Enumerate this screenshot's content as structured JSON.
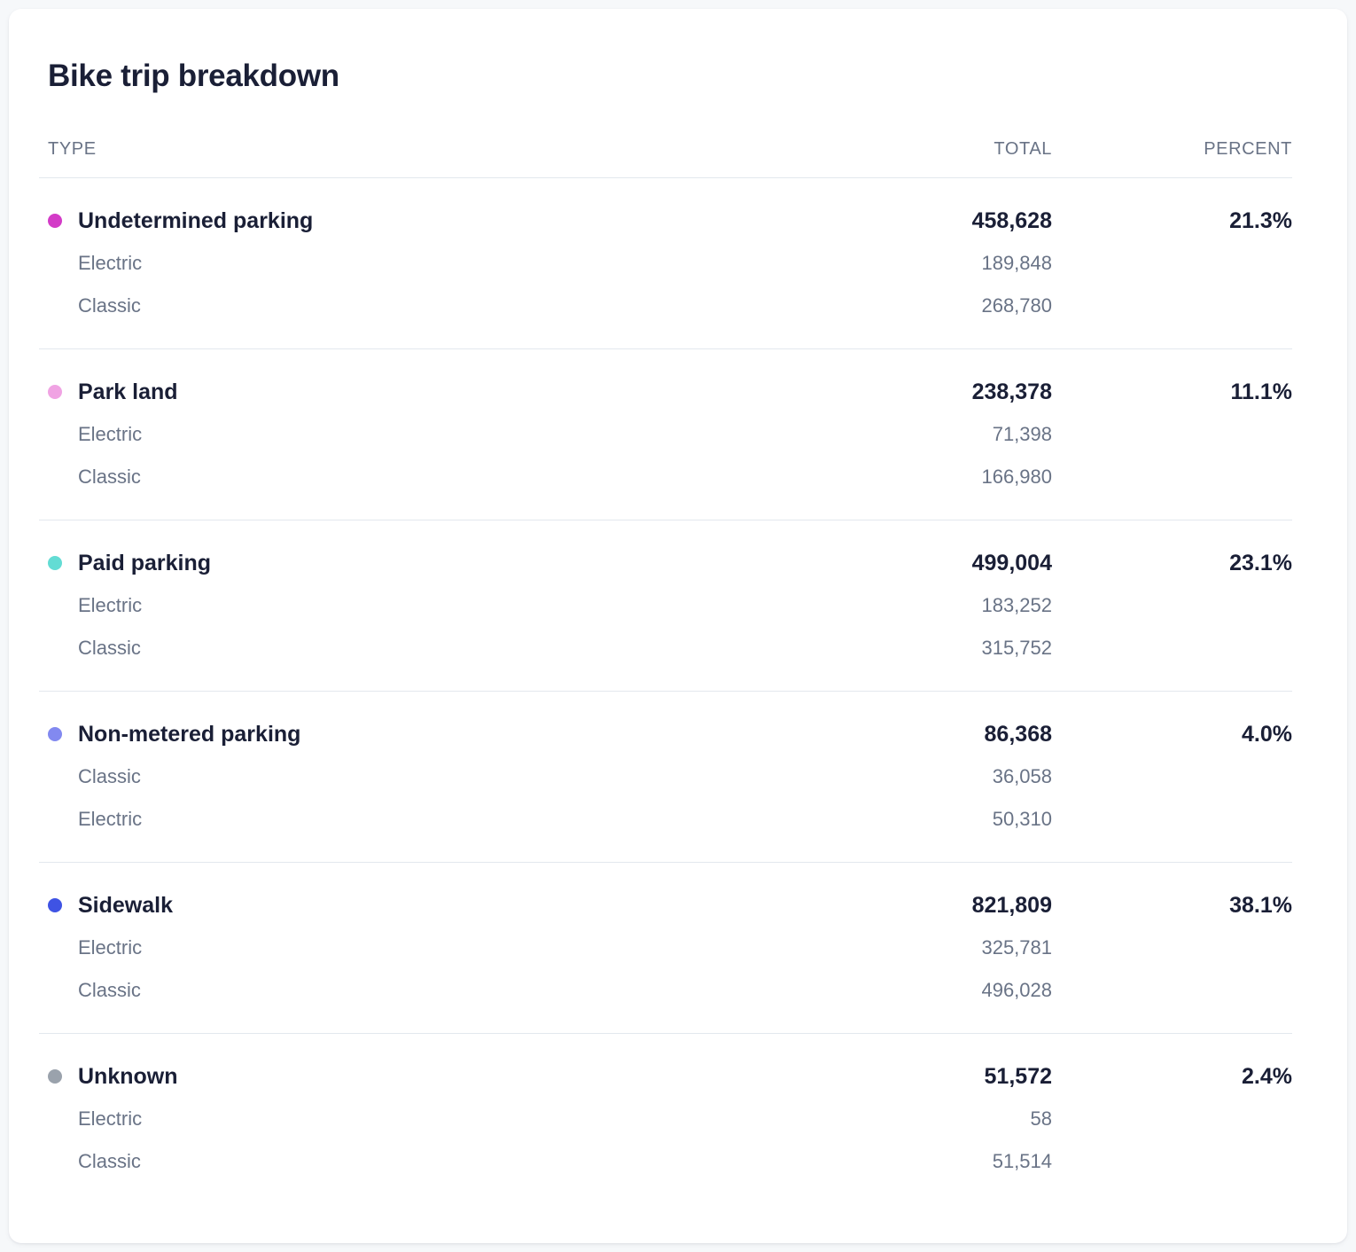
{
  "chart_data": {
    "type": "table",
    "title": "Bike trip breakdown",
    "columns": [
      "TYPE",
      "TOTAL",
      "PERCENT"
    ],
    "rows": [
      {
        "type": "Undetermined parking",
        "color": "#d33bc7",
        "total": 458628,
        "total_display": "458,628",
        "percent": "21.3%",
        "subrows": [
          {
            "label": "Electric",
            "value": 189848,
            "value_display": "189,848"
          },
          {
            "label": "Classic",
            "value": 268780,
            "value_display": "268,780"
          }
        ]
      },
      {
        "type": "Park land",
        "color": "#f0a3e3",
        "total": 238378,
        "total_display": "238,378",
        "percent": "11.1%",
        "subrows": [
          {
            "label": "Electric",
            "value": 71398,
            "value_display": "71,398"
          },
          {
            "label": "Classic",
            "value": 166980,
            "value_display": "166,980"
          }
        ]
      },
      {
        "type": "Paid parking",
        "color": "#63dcd4",
        "total": 499004,
        "total_display": "499,004",
        "percent": "23.1%",
        "subrows": [
          {
            "label": "Electric",
            "value": 183252,
            "value_display": "183,252"
          },
          {
            "label": "Classic",
            "value": 315752,
            "value_display": "315,752"
          }
        ]
      },
      {
        "type": "Non-metered parking",
        "color": "#8289f0",
        "total": 86368,
        "total_display": "86,368",
        "percent": "4.0%",
        "subrows": [
          {
            "label": "Classic",
            "value": 36058,
            "value_display": "36,058"
          },
          {
            "label": "Electric",
            "value": 50310,
            "value_display": "50,310"
          }
        ]
      },
      {
        "type": "Sidewalk",
        "color": "#3f53e4",
        "total": 821809,
        "total_display": "821,809",
        "percent": "38.1%",
        "subrows": [
          {
            "label": "Electric",
            "value": 325781,
            "value_display": "325,781"
          },
          {
            "label": "Classic",
            "value": 496028,
            "value_display": "496,028"
          }
        ]
      },
      {
        "type": "Unknown",
        "color": "#9aa2ac",
        "total": 51572,
        "total_display": "51,572",
        "percent": "2.4%",
        "subrows": [
          {
            "label": "Electric",
            "value": 58,
            "value_display": "58"
          },
          {
            "label": "Classic",
            "value": 51514,
            "value_display": "51,514"
          }
        ]
      }
    ]
  }
}
